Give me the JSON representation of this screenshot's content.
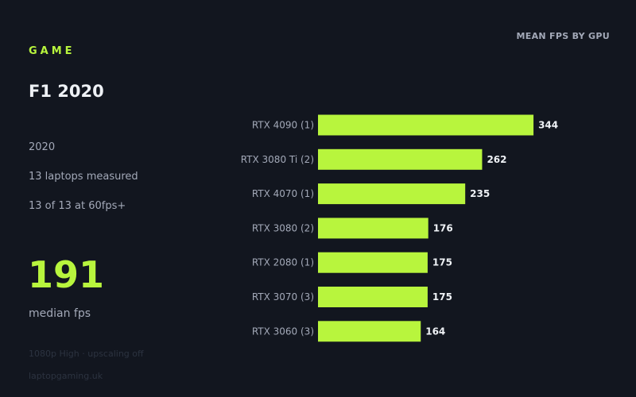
{
  "eyebrow": "GAME",
  "game": {
    "title": "F1 2020",
    "year": "2020",
    "laptops_measured": "13 laptops measured",
    "at_60fps": "13 of 13 at 60fps+"
  },
  "summary": {
    "median_value": "191",
    "median_label": "median fps"
  },
  "footer": {
    "settings": "1080p High · upscaling off",
    "source": "laptopgaming.uk"
  },
  "colors": {
    "accent": "#b8f53d",
    "background": "#12161f"
  },
  "chart_data": {
    "type": "bar",
    "orientation": "horizontal",
    "title": "MEAN FPS BY GPU",
    "categories": [
      "RTX 4090  (1)",
      "RTX 3080 Ti  (2)",
      "RTX 4070  (1)",
      "RTX 3080  (2)",
      "RTX 2080  (1)",
      "RTX 3070  (3)",
      "RTX 3060  (3)"
    ],
    "values": [
      344,
      262,
      235,
      176,
      175,
      175,
      164
    ],
    "xlim": [
      0,
      400
    ],
    "grid": false,
    "legend": "none"
  }
}
